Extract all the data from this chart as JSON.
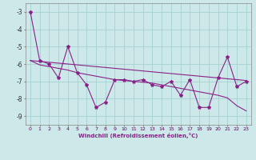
{
  "x": [
    0,
    1,
    2,
    3,
    4,
    5,
    6,
    7,
    8,
    9,
    10,
    11,
    12,
    13,
    14,
    15,
    16,
    17,
    18,
    19,
    20,
    21,
    22,
    23
  ],
  "y_main": [
    -3.0,
    -5.8,
    -6.0,
    -6.8,
    -5.0,
    -6.5,
    -7.2,
    -8.5,
    -8.2,
    -6.9,
    -6.9,
    -7.0,
    -6.9,
    -7.2,
    -7.3,
    -7.0,
    -7.8,
    -6.9,
    -8.5,
    -8.5,
    -6.8,
    -5.6,
    -7.3,
    -7.0
  ],
  "y_trend1": [
    -5.8,
    -5.85,
    -5.9,
    -5.95,
    -6.0,
    -6.05,
    -6.1,
    -6.15,
    -6.2,
    -6.25,
    -6.3,
    -6.35,
    -6.4,
    -6.45,
    -6.5,
    -6.55,
    -6.6,
    -6.65,
    -6.7,
    -6.75,
    -6.8,
    -6.85,
    -6.9,
    -6.95
  ],
  "y_trend2": [
    -5.8,
    -6.05,
    -6.15,
    -6.25,
    -6.35,
    -6.5,
    -6.6,
    -6.7,
    -6.8,
    -6.9,
    -6.95,
    -7.0,
    -7.05,
    -7.1,
    -7.2,
    -7.3,
    -7.4,
    -7.5,
    -7.6,
    -7.7,
    -7.8,
    -7.95,
    -8.4,
    -8.7
  ],
  "bg_color": "#cce8e8",
  "grid_color": "#aad4d4",
  "line_color": "#882288",
  "xlabel": "Windchill (Refroidissement éolien,°C)",
  "ylim": [
    -9.5,
    -2.5
  ],
  "xlim": [
    -0.5,
    23.5
  ],
  "yticks": [
    -9,
    -8,
    -7,
    -6,
    -5,
    -4,
    -3
  ],
  "xticks": [
    0,
    1,
    2,
    3,
    4,
    5,
    6,
    7,
    8,
    9,
    10,
    11,
    12,
    13,
    14,
    15,
    16,
    17,
    18,
    19,
    20,
    21,
    22,
    23
  ]
}
